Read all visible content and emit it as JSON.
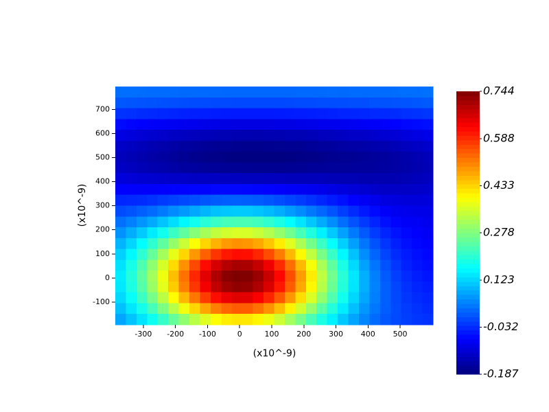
{
  "chart_data": {
    "type": "heatmap",
    "colormap": "jet",
    "x_label": "(x10^-9)",
    "y_label": "(x10^-9)",
    "x": [
      -371,
      -338,
      -305,
      -272,
      -239,
      -206,
      -173,
      -140,
      -107,
      -74,
      -41,
      -8,
      25,
      58,
      91,
      124,
      157,
      190,
      223,
      256,
      289,
      322,
      355,
      388,
      421,
      454,
      487,
      520,
      553,
      586
    ],
    "y": [
      773,
      728,
      683,
      638,
      593,
      548,
      503,
      458,
      413,
      368,
      323,
      278,
      233,
      188,
      143,
      98,
      53,
      8,
      -37,
      -82,
      -127,
      -172
    ],
    "xlim": [
      -387.5,
      602.5
    ],
    "ylim": [
      -194.5,
      795.5
    ],
    "xticks": [
      -300,
      -200,
      -100,
      0,
      100,
      200,
      300,
      400,
      500
    ],
    "yticks": [
      -100,
      0,
      100,
      200,
      300,
      400,
      500,
      600,
      700
    ],
    "clim": [
      -0.187,
      0.744
    ],
    "cticks": [
      -0.187,
      -0.032,
      0.123,
      0.278,
      0.433,
      0.588,
      0.744
    ],
    "values": [
      [
        0.031,
        0.03,
        0.029,
        0.028,
        0.028,
        0.027,
        0.026,
        0.026,
        0.025,
        0.025,
        0.024,
        0.024,
        0.024,
        0.024,
        0.024,
        0.024,
        0.024,
        0.025,
        0.025,
        0.026,
        0.027,
        0.026,
        0.027,
        0.027,
        0.028,
        0.028,
        0.029,
        0.03,
        0.031,
        0.032
      ],
      [
        0.009,
        0.007,
        0.005,
        0.004,
        0.002,
        0.001,
        -0.001,
        -0.002,
        -0.003,
        -0.004,
        -0.004,
        -0.005,
        -0.005,
        -0.005,
        -0.005,
        -0.005,
        -0.004,
        -0.003,
        -0.002,
        -0.001,
        -0.001,
        0,
        0.001,
        0.001,
        0.003,
        0.004,
        0.005,
        0.006,
        0.008,
        0.01
      ],
      [
        -0.025,
        -0.028,
        -0.031,
        -0.034,
        -0.036,
        -0.039,
        -0.041,
        -0.043,
        -0.044,
        -0.046,
        -0.047,
        -0.048,
        -0.048,
        -0.048,
        -0.048,
        -0.047,
        -0.046,
        -0.045,
        -0.044,
        -0.043,
        -0.041,
        -0.039,
        -0.038,
        -0.036,
        -0.034,
        -0.033,
        -0.031,
        -0.028,
        -0.025,
        -0.023
      ],
      [
        -0.062,
        -0.067,
        -0.071,
        -0.075,
        -0.078,
        -0.082,
        -0.085,
        -0.088,
        -0.091,
        -0.093,
        -0.094,
        -0.096,
        -0.096,
        -0.096,
        -0.096,
        -0.095,
        -0.094,
        -0.092,
        -0.091,
        -0.088,
        -0.086,
        -0.083,
        -0.082,
        -0.079,
        -0.076,
        -0.073,
        -0.07,
        -0.065,
        -0.062,
        -0.058
      ],
      [
        -0.097,
        -0.103,
        -0.109,
        -0.114,
        -0.119,
        -0.124,
        -0.128,
        -0.131,
        -0.134,
        -0.137,
        -0.139,
        -0.141,
        -0.142,
        -0.142,
        -0.141,
        -0.14,
        -0.138,
        -0.138,
        -0.135,
        -0.132,
        -0.129,
        -0.125,
        -0.123,
        -0.12,
        -0.117,
        -0.112,
        -0.109,
        -0.103,
        -0.097,
        -0.092
      ],
      [
        -0.121,
        -0.127,
        -0.134,
        -0.14,
        -0.146,
        -0.152,
        -0.156,
        -0.161,
        -0.165,
        -0.168,
        -0.17,
        -0.172,
        -0.173,
        -0.173,
        -0.172,
        -0.171,
        -0.169,
        -0.169,
        -0.165,
        -0.161,
        -0.159,
        -0.155,
        -0.152,
        -0.15,
        -0.146,
        -0.142,
        -0.137,
        -0.13,
        -0.124,
        -0.117
      ],
      [
        -0.131,
        -0.139,
        -0.145,
        -0.152,
        -0.157,
        -0.163,
        -0.168,
        -0.173,
        -0.177,
        -0.179,
        -0.182,
        -0.184,
        -0.185,
        -0.185,
        -0.184,
        -0.185,
        -0.183,
        -0.181,
        -0.178,
        -0.175,
        -0.172,
        -0.17,
        -0.168,
        -0.165,
        -0.162,
        -0.158,
        -0.154,
        -0.147,
        -0.141,
        -0.134
      ],
      [
        -0.124,
        -0.13,
        -0.136,
        -0.142,
        -0.146,
        -0.151,
        -0.156,
        -0.159,
        -0.162,
        -0.164,
        -0.166,
        -0.168,
        -0.169,
        -0.169,
        -0.169,
        -0.169,
        -0.169,
        -0.167,
        -0.165,
        -0.164,
        -0.163,
        -0.162,
        -0.161,
        -0.161,
        -0.159,
        -0.157,
        -0.153,
        -0.149,
        -0.143,
        -0.137
      ],
      [
        -0.102,
        -0.107,
        -0.111,
        -0.114,
        -0.117,
        -0.12,
        -0.121,
        -0.124,
        -0.125,
        -0.125,
        -0.127,
        -0.128,
        -0.129,
        -0.129,
        -0.13,
        -0.131,
        -0.133,
        -0.133,
        -0.134,
        -0.134,
        -0.136,
        -0.138,
        -0.139,
        -0.142,
        -0.143,
        -0.143,
        -0.142,
        -0.139,
        -0.134,
        -0.13
      ],
      [
        -0.071,
        -0.073,
        -0.074,
        -0.074,
        -0.073,
        -0.071,
        -0.07,
        -0.068,
        -0.067,
        -0.065,
        -0.064,
        -0.065,
        -0.066,
        -0.067,
        -0.07,
        -0.073,
        -0.077,
        -0.081,
        -0.084,
        -0.089,
        -0.094,
        -0.101,
        -0.107,
        -0.113,
        -0.118,
        -0.122,
        -0.123,
        -0.122,
        -0.121,
        -0.117
      ],
      [
        -0.036,
        -0.034,
        -0.031,
        -0.026,
        -0.019,
        -0.012,
        -0.005,
        0.001,
        0.007,
        0.012,
        0.014,
        0.016,
        0.015,
        0.012,
        0.007,
        -0.001,
        -0.009,
        -0.017,
        -0.026,
        -0.036,
        -0.047,
        -0.057,
        -0.07,
        -0.081,
        -0.089,
        -0.098,
        -0.101,
        -0.104,
        -0.104,
        -0.104
      ],
      [
        -0.002,
        0.006,
        0.017,
        0.028,
        0.041,
        0.056,
        0.07,
        0.084,
        0.096,
        0.106,
        0.111,
        0.115,
        0.114,
        0.108,
        0.099,
        0.087,
        0.073,
        0.056,
        0.04,
        0.023,
        0.005,
        -0.014,
        -0.032,
        -0.049,
        -0.062,
        -0.075,
        -0.083,
        -0.088,
        -0.092,
        -0.092
      ],
      [
        0.032,
        0.047,
        0.065,
        0.085,
        0.108,
        0.132,
        0.156,
        0.178,
        0.199,
        0.214,
        0.225,
        0.23,
        0.229,
        0.221,
        0.206,
        0.187,
        0.164,
        0.139,
        0.112,
        0.085,
        0.059,
        0.031,
        0.005,
        -0.019,
        -0.039,
        -0.056,
        -0.067,
        -0.076,
        -0.081,
        -0.085
      ],
      [
        0.064,
        0.087,
        0.114,
        0.145,
        0.178,
        0.215,
        0.249,
        0.284,
        0.314,
        0.338,
        0.353,
        0.36,
        0.358,
        0.346,
        0.325,
        0.297,
        0.265,
        0.228,
        0.19,
        0.15,
        0.113,
        0.076,
        0.041,
        0.01,
        -0.017,
        -0.038,
        -0.054,
        -0.065,
        -0.073,
        -0.078
      ],
      [
        0.094,
        0.125,
        0.162,
        0.204,
        0.249,
        0.298,
        0.346,
        0.392,
        0.433,
        0.465,
        0.486,
        0.495,
        0.492,
        0.476,
        0.448,
        0.412,
        0.367,
        0.318,
        0.268,
        0.216,
        0.167,
        0.119,
        0.075,
        0.037,
        0.004,
        -0.023,
        -0.042,
        -0.057,
        -0.066,
        -0.072
      ],
      [
        0.12,
        0.158,
        0.203,
        0.255,
        0.312,
        0.373,
        0.432,
        0.489,
        0.54,
        0.579,
        0.606,
        0.617,
        0.614,
        0.594,
        0.559,
        0.514,
        0.459,
        0.399,
        0.337,
        0.273,
        0.214,
        0.156,
        0.106,
        0.059,
        0.021,
        -0.009,
        -0.031,
        -0.047,
        -0.058,
        -0.066
      ],
      [
        0.137,
        0.182,
        0.234,
        0.293,
        0.358,
        0.428,
        0.496,
        0.561,
        0.619,
        0.664,
        0.694,
        0.708,
        0.704,
        0.681,
        0.641,
        0.589,
        0.527,
        0.458,
        0.388,
        0.316,
        0.249,
        0.185,
        0.128,
        0.077,
        0.036,
        0.003,
        -0.021,
        -0.041,
        -0.052,
        -0.061
      ],
      [
        0.146,
        0.193,
        0.248,
        0.311,
        0.38,
        0.453,
        0.524,
        0.593,
        0.654,
        0.702,
        0.734,
        0.744,
        0.741,
        0.72,
        0.678,
        0.623,
        0.557,
        0.485,
        0.412,
        0.336,
        0.266,
        0.199,
        0.141,
        0.089,
        0.046,
        0.012,
        -0.013,
        -0.032,
        -0.044,
        -0.053
      ],
      [
        0.142,
        0.188,
        0.241,
        0.303,
        0.37,
        0.441,
        0.511,
        0.578,
        0.637,
        0.684,
        0.715,
        0.729,
        0.725,
        0.702,
        0.661,
        0.607,
        0.543,
        0.473,
        0.401,
        0.328,
        0.259,
        0.195,
        0.139,
        0.09,
        0.049,
        0.016,
        -0.007,
        -0.026,
        -0.038,
        -0.046
      ],
      [
        0.128,
        0.169,
        0.217,
        0.272,
        0.333,
        0.397,
        0.46,
        0.52,
        0.574,
        0.616,
        0.644,
        0.656,
        0.653,
        0.632,
        0.595,
        0.547,
        0.49,
        0.425,
        0.361,
        0.295,
        0.235,
        0.177,
        0.126,
        0.082,
        0.046,
        0.017,
        -0.005,
        -0.021,
        -0.031,
        -0.039
      ],
      [
        0.106,
        0.14,
        0.18,
        0.226,
        0.276,
        0.329,
        0.382,
        0.432,
        0.476,
        0.511,
        0.534,
        0.545,
        0.542,
        0.524,
        0.494,
        0.454,
        0.406,
        0.353,
        0.299,
        0.245,
        0.195,
        0.146,
        0.105,
        0.068,
        0.038,
        0.014,
        -0.003,
        -0.017,
        -0.026,
        -0.033
      ],
      [
        0.081,
        0.108,
        0.138,
        0.174,
        0.212,
        0.253,
        0.293,
        0.331,
        0.365,
        0.392,
        0.41,
        0.418,
        0.416,
        0.402,
        0.379,
        0.349,
        0.311,
        0.271,
        0.23,
        0.188,
        0.149,
        0.113,
        0.08,
        0.052,
        0.028,
        0.009,
        -0.004,
        -0.014,
        -0.022,
        -0.026
      ]
    ]
  }
}
